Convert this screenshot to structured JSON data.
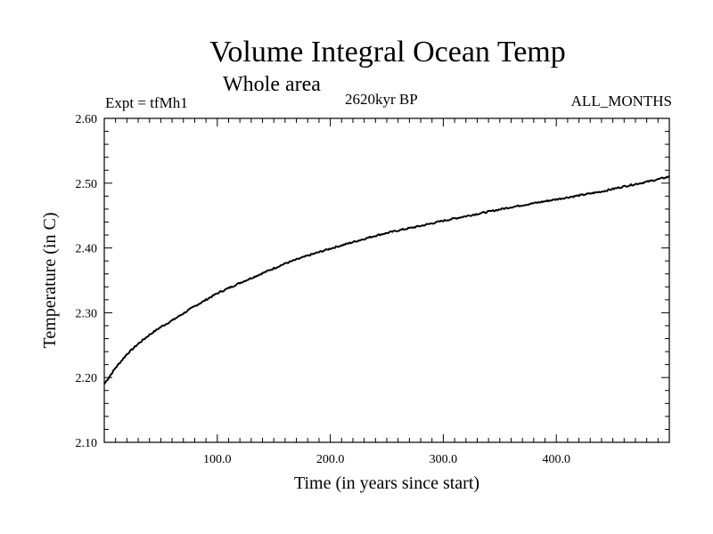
{
  "header": {
    "title": "Volume Integral Ocean Temp",
    "subtitle": "Whole area",
    "experiment": "Expt = tfMh1",
    "period": "2620kyr BP",
    "months": "ALL_MONTHS"
  },
  "chart_data": {
    "type": "line",
    "title": "Volume Integral Ocean Temp",
    "subtitle": "Whole area",
    "xlabel": "Time (in years since start)",
    "ylabel": "Temperature (in C)",
    "xlim": [
      0,
      500
    ],
    "ylim": [
      2.1,
      2.6
    ],
    "xticks": [
      100,
      200,
      300,
      400
    ],
    "xtick_labels": [
      "100.0",
      "200.0",
      "300.0",
      "400.0"
    ],
    "yticks": [
      2.1,
      2.2,
      2.3,
      2.4,
      2.5,
      2.6
    ],
    "ytick_labels": [
      "2.10",
      "2.20",
      "2.30",
      "2.40",
      "2.50",
      "2.60"
    ],
    "grid": false,
    "series": [
      {
        "name": "Volume Integral Ocean Temp",
        "x": [
          0,
          10,
          20,
          30,
          40,
          50,
          60,
          80,
          100,
          120,
          140,
          160,
          180,
          200,
          220,
          240,
          260,
          280,
          300,
          320,
          340,
          360,
          380,
          400,
          420,
          440,
          460,
          480,
          500
        ],
        "values": [
          2.19,
          2.215,
          2.236,
          2.252,
          2.266,
          2.278,
          2.288,
          2.31,
          2.33,
          2.346,
          2.361,
          2.376,
          2.388,
          2.399,
          2.409,
          2.419,
          2.427,
          2.434,
          2.442,
          2.449,
          2.456,
          2.463,
          2.469,
          2.475,
          2.481,
          2.487,
          2.495,
          2.502,
          2.51
        ]
      }
    ]
  }
}
